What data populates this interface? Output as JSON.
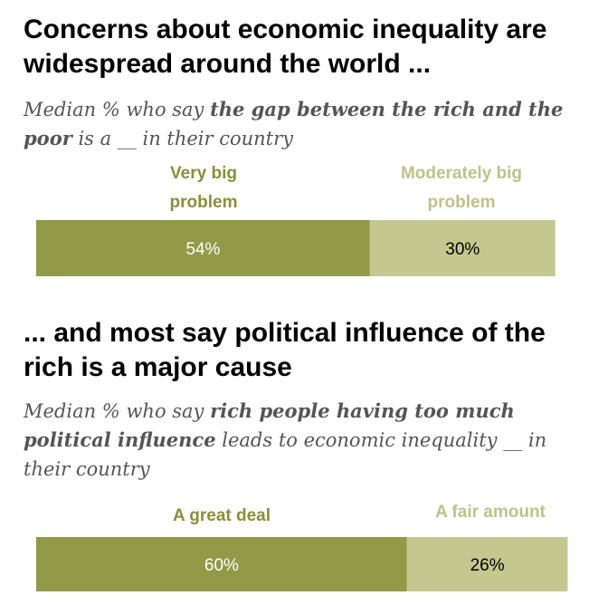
{
  "colors": {
    "dark": "#929947",
    "light": "#C4C88F",
    "dark_label": "#8A8F3A",
    "light_label": "#BEC288"
  },
  "section1": {
    "title": "Concerns about economic inequality are widespread around the world ...",
    "subtitle_parts": [
      {
        "text": "Median % who say ",
        "bold": false
      },
      {
        "text": "the gap between the rich and the poor",
        "bold": true
      },
      {
        "text": " is a __ in their country",
        "bold": false
      }
    ]
  },
  "section2": {
    "title": "... and most say political influence of the rich is a major cause",
    "subtitle_parts": [
      {
        "text": "Median % who say ",
        "bold": false
      },
      {
        "text": "rich people having too much political influence",
        "bold": true
      },
      {
        "text": " leads to economic inequality __ in their country",
        "bold": false
      }
    ]
  },
  "chart_data": [
    {
      "type": "bar",
      "orientation": "horizontal-stacked",
      "categories": [
        "Very big problem",
        "Moderately big problem"
      ],
      "values": [
        54,
        30
      ],
      "labels": [
        "54%",
        "30%"
      ],
      "unit": "%"
    },
    {
      "type": "bar",
      "orientation": "horizontal-stacked",
      "categories": [
        "A great deal",
        "A fair amount"
      ],
      "values": [
        60,
        26
      ],
      "labels": [
        "60%",
        "26%"
      ],
      "unit": "%"
    }
  ]
}
